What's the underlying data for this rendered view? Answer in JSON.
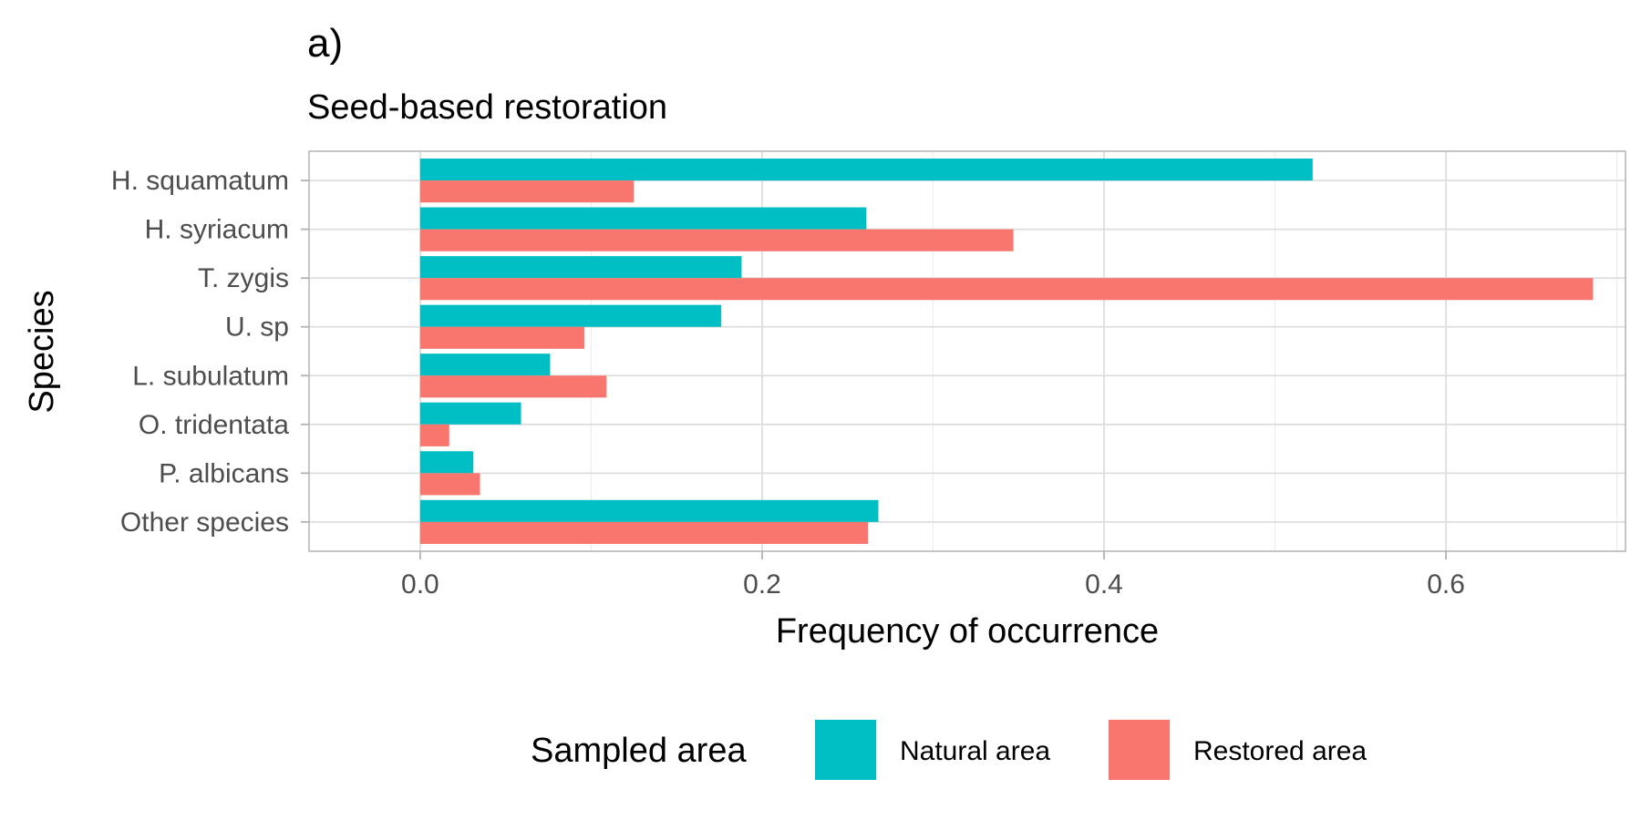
{
  "chart_data": {
    "type": "bar",
    "orientation": "horizontal",
    "panel_label": "a)",
    "subtitle": "Seed-based restoration",
    "xlabel": "Frequency of occurrence",
    "ylabel": "Species",
    "xlim": [
      -0.065,
      0.705
    ],
    "xticks": [
      0.0,
      0.2,
      0.4,
      0.6
    ],
    "xtick_labels": [
      "0.0",
      "0.2",
      "0.4",
      "0.6"
    ],
    "categories": [
      "H. squamatum",
      "H. syriacum",
      "T. zygis",
      "U. sp",
      "L. subulatum",
      "O. tridentata",
      "P. albicans",
      "Other species"
    ],
    "series": [
      {
        "name": "Natural area",
        "color": "#00BFC4",
        "values": [
          0.522,
          0.261,
          0.188,
          0.176,
          0.076,
          0.059,
          0.031,
          0.268
        ]
      },
      {
        "name": "Restored area",
        "color": "#F8766D",
        "values": [
          0.125,
          0.347,
          0.686,
          0.096,
          0.109,
          0.017,
          0.035,
          0.262
        ]
      }
    ],
    "grid": true,
    "legend": {
      "title": "Sampled area",
      "position": "bottom"
    },
    "colors": {
      "panel_border": "#B3B3B3",
      "grid_major": "#DEDEDE",
      "grid_minor": "#EDEDED",
      "tick_text": "#4D4D4D",
      "tick_mark": "#B3B3B3"
    }
  }
}
